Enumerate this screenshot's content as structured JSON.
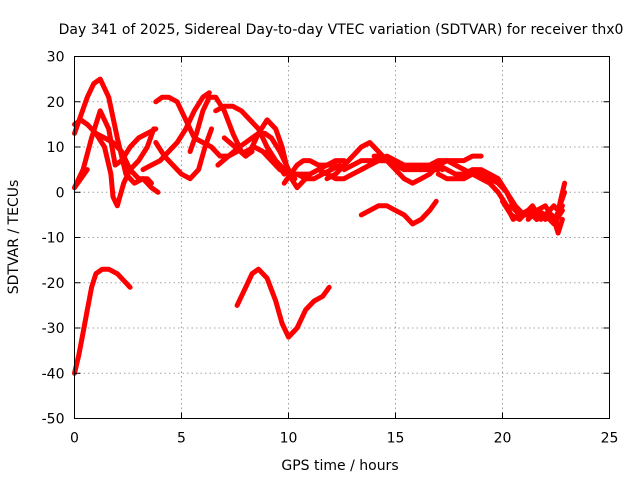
{
  "chart_data": {
    "type": "line",
    "title": "Day 341 of 2025, Sidereal Day-to-day VTEC variation (SDTVAR) for receiver thx0",
    "xlabel": "GPS time / hours",
    "ylabel": "SDTVAR / TECUs",
    "xlim": [
      0,
      25
    ],
    "ylim": [
      -50,
      30
    ],
    "xticks": [
      0,
      5,
      10,
      15,
      20,
      25
    ],
    "yticks": [
      -50,
      -40,
      -30,
      -20,
      -10,
      0,
      10,
      20,
      30
    ],
    "grid": true,
    "series_color": "#ff0000",
    "series": [
      {
        "name": "s1",
        "x": [
          0,
          0.3,
          0.6,
          0.9,
          1.2,
          1.6,
          2.0,
          2.4,
          2.8,
          3.2,
          3.6,
          3.9
        ],
        "y": [
          13,
          17,
          21,
          24,
          25,
          21,
          12,
          4,
          2,
          3,
          1,
          0
        ]
      },
      {
        "name": "s2",
        "x": [
          0,
          0.3,
          0.6,
          1.0,
          1.4,
          1.8,
          2.2,
          2.6,
          3.0,
          3.4,
          3.6
        ],
        "y": [
          15,
          16,
          15,
          13,
          12,
          11,
          9,
          5,
          3,
          3,
          2
        ]
      },
      {
        "name": "s3",
        "x": [
          0,
          0.4,
          0.8,
          1.2,
          1.6,
          1.9,
          2.2,
          2.6,
          3.0,
          3.4,
          3.8
        ],
        "y": [
          1,
          5,
          12,
          18,
          14,
          6,
          7,
          10,
          12,
          13,
          14
        ]
      },
      {
        "name": "s4",
        "x": [
          0,
          0.3,
          0.6
        ],
        "y": [
          1,
          3,
          5
        ]
      },
      {
        "name": "s5",
        "x": [
          1.0,
          1.4,
          1.7,
          1.8,
          2.0,
          2.3,
          2.6,
          3.0,
          3.4,
          3.7
        ],
        "y": [
          13,
          10,
          4,
          -1,
          -3,
          2,
          5,
          7,
          10,
          14
        ]
      },
      {
        "name": "s6",
        "x": [
          0,
          0.2,
          0.4,
          0.6,
          0.8,
          1.0,
          1.3,
          1.6,
          2.0,
          2.4,
          2.6
        ],
        "y": [
          -40,
          -36,
          -31,
          -26,
          -21,
          -18,
          -17,
          -17,
          -18,
          -20,
          -21
        ]
      },
      {
        "name": "s7",
        "x": [
          3.2,
          3.6,
          4.0,
          4.4,
          4.8,
          5.2,
          5.6,
          6.0,
          6.3
        ],
        "y": [
          5,
          6,
          7,
          9,
          11,
          14,
          18,
          21,
          22
        ]
      },
      {
        "name": "s8",
        "x": [
          3.8,
          4.2,
          4.6,
          5.0,
          5.4,
          5.8,
          6.1,
          6.4
        ],
        "y": [
          11,
          8,
          6,
          4,
          3,
          5,
          10,
          14
        ]
      },
      {
        "name": "s9",
        "x": [
          3.8,
          4.1,
          4.4,
          4.8,
          5.2,
          5.6,
          6.0,
          6.4,
          6.8,
          7.2,
          7.6
        ],
        "y": [
          20,
          21,
          21,
          20,
          16,
          12,
          11,
          10,
          8,
          8,
          9
        ]
      },
      {
        "name": "s10",
        "x": [
          5.4,
          5.7,
          6.0,
          6.3,
          6.6,
          7.0,
          7.4,
          7.8,
          8.0,
          8.3
        ],
        "y": [
          9,
          13,
          18,
          21,
          21,
          18,
          13,
          9,
          8,
          9
        ]
      },
      {
        "name": "s11",
        "x": [
          6.6,
          7.0,
          7.4,
          7.8,
          8.2,
          8.6,
          9.0,
          9.4,
          9.8
        ],
        "y": [
          18,
          19,
          19,
          18,
          16,
          14,
          10,
          7,
          4
        ]
      },
      {
        "name": "s12",
        "x": [
          6.7,
          7.2,
          7.7,
          8.0,
          8.3,
          8.6,
          8.9,
          9.2,
          9.6,
          10.0,
          10.3
        ],
        "y": [
          6,
          8,
          10,
          11,
          12,
          13,
          13,
          12,
          9,
          5,
          3
        ]
      },
      {
        "name": "s13",
        "x": [
          7.0,
          7.5,
          8.0,
          8.3,
          8.6,
          9.0,
          9.4,
          9.7,
          10.0,
          10.4,
          10.8
        ],
        "y": [
          12,
          10,
          8,
          10,
          13,
          16,
          14,
          10,
          4,
          1,
          3
        ]
      },
      {
        "name": "s14",
        "x": [
          8.0,
          8.4,
          8.8,
          9.2,
          9.6,
          10.0,
          10.4,
          10.8,
          11.2,
          11.6,
          12.0,
          12.4
        ],
        "y": [
          9,
          10,
          9,
          7,
          5,
          4,
          4,
          3,
          3,
          4,
          5,
          6
        ]
      },
      {
        "name": "s15",
        "x": [
          9.0,
          9.4,
          9.8,
          10.2,
          10.6,
          11.0,
          11.4,
          11.8,
          12.2
        ],
        "y": [
          9,
          7,
          5,
          4,
          4,
          4,
          5,
          6,
          6
        ]
      },
      {
        "name": "s16",
        "x": [
          9.8,
          10.1,
          10.4,
          10.7,
          11.0,
          11.4,
          11.8,
          12.2,
          12.6
        ],
        "y": [
          2,
          4,
          6,
          7,
          7,
          6,
          6,
          7,
          7
        ]
      },
      {
        "name": "s17",
        "x": [
          7.6,
          8.0,
          8.3,
          8.6,
          9.0,
          9.4,
          9.7,
          10.0,
          10.4,
          10.8,
          11.2,
          11.6,
          11.9
        ],
        "y": [
          -25,
          -21,
          -18,
          -17,
          -19,
          -24,
          -29,
          -32,
          -30,
          -26,
          -24,
          -23,
          -21
        ]
      },
      {
        "name": "s18",
        "x": [
          11.4,
          11.8,
          12.2,
          12.6,
          13.0,
          13.4,
          13.8,
          14.2,
          14.6,
          15.0,
          15.4,
          15.8
        ],
        "y": [
          5,
          4,
          3,
          3,
          4,
          5,
          6,
          7,
          8,
          7,
          6,
          5
        ]
      },
      {
        "name": "s19",
        "x": [
          11.8,
          12.2,
          12.6,
          13.0,
          13.4,
          13.8,
          14.2,
          14.6,
          15.0
        ],
        "y": [
          3,
          4,
          6,
          8,
          10,
          11,
          9,
          7,
          6
        ]
      },
      {
        "name": "s20",
        "x": [
          12.6,
          13.0,
          13.4,
          13.8,
          14.2,
          14.6,
          15.0,
          15.4,
          15.8,
          16.2,
          16.6,
          17.0
        ],
        "y": [
          5,
          6,
          7,
          7,
          7,
          7,
          6,
          5,
          5,
          5,
          5,
          5
        ]
      },
      {
        "name": "s21",
        "x": [
          13.4,
          13.8,
          14.2,
          14.6,
          15.0,
          15.4,
          15.8,
          16.2,
          16.6,
          17.0,
          17.4,
          17.8,
          18.2
        ],
        "y": [
          5,
          6,
          7,
          7,
          5,
          3,
          2,
          3,
          4,
          6,
          7,
          6,
          5
        ]
      },
      {
        "name": "s22",
        "x": [
          14.0,
          14.4,
          14.8,
          15.2,
          15.6,
          16.0,
          16.4,
          16.8,
          17.2
        ],
        "y": [
          8,
          8,
          7,
          6,
          6,
          6,
          6,
          6,
          5
        ]
      },
      {
        "name": "s23",
        "x": [
          13.4,
          13.8,
          14.2,
          14.6,
          15.0,
          15.4,
          15.8,
          16.2,
          16.6,
          16.9
        ],
        "y": [
          -5,
          -4,
          -3,
          -3,
          -4,
          -5,
          -7,
          -6,
          -4,
          -2
        ]
      },
      {
        "name": "s24",
        "x": [
          16.6,
          17.0,
          17.4,
          17.8,
          18.2,
          18.6,
          19.0
        ],
        "y": [
          6,
          7,
          7,
          7,
          7,
          8,
          8
        ]
      },
      {
        "name": "s25",
        "x": [
          16.6,
          17.0,
          17.4,
          17.8,
          18.2,
          18.6,
          19.0,
          19.4,
          19.8,
          20.2,
          20.5,
          20.8
        ],
        "y": [
          5,
          6,
          5,
          4,
          4,
          5,
          5,
          4,
          3,
          0,
          -3,
          -5
        ]
      },
      {
        "name": "s26",
        "x": [
          17.0,
          17.4,
          17.8,
          18.2,
          18.6,
          19.0,
          19.4,
          19.8,
          20.2,
          20.6,
          21.0
        ],
        "y": [
          4,
          3,
          3,
          3,
          4,
          4,
          3,
          2,
          0,
          -3,
          -5
        ]
      },
      {
        "name": "s27",
        "x": [
          18.2,
          18.6,
          19.0,
          19.4,
          19.8,
          20.2,
          20.5,
          20.8,
          21.2,
          21.6
        ],
        "y": [
          5,
          4,
          3,
          2,
          0,
          -3,
          -6,
          -5,
          -4,
          -6
        ]
      },
      {
        "name": "s28",
        "x": [
          20.0,
          20.4,
          20.8,
          21.2,
          21.6,
          22.0,
          22.4,
          22.8
        ],
        "y": [
          -2,
          -5,
          -6,
          -4,
          -6,
          -5,
          -7,
          -4
        ]
      },
      {
        "name": "s29",
        "x": [
          20.4,
          20.8,
          21.2,
          21.6,
          22.0,
          22.4,
          22.6,
          22.8
        ],
        "y": [
          -3,
          -5,
          -5,
          -4,
          -3,
          -6,
          -9,
          -6
        ]
      },
      {
        "name": "s30",
        "x": [
          21.0,
          21.4,
          21.8,
          22.2,
          22.4,
          22.6,
          22.9
        ],
        "y": [
          -5,
          -3,
          -6,
          -4,
          -3,
          -4,
          0
        ]
      },
      {
        "name": "s31",
        "x": [
          21.6,
          22.0,
          22.3,
          22.5,
          22.7,
          22.9
        ],
        "y": [
          -4,
          -6,
          -5,
          -7,
          -2,
          2
        ]
      },
      {
        "name": "s32",
        "x": [
          21.2,
          21.6,
          22.0,
          22.4,
          22.8
        ],
        "y": [
          -6,
          -4,
          -5,
          -6,
          -3
        ]
      }
    ]
  }
}
